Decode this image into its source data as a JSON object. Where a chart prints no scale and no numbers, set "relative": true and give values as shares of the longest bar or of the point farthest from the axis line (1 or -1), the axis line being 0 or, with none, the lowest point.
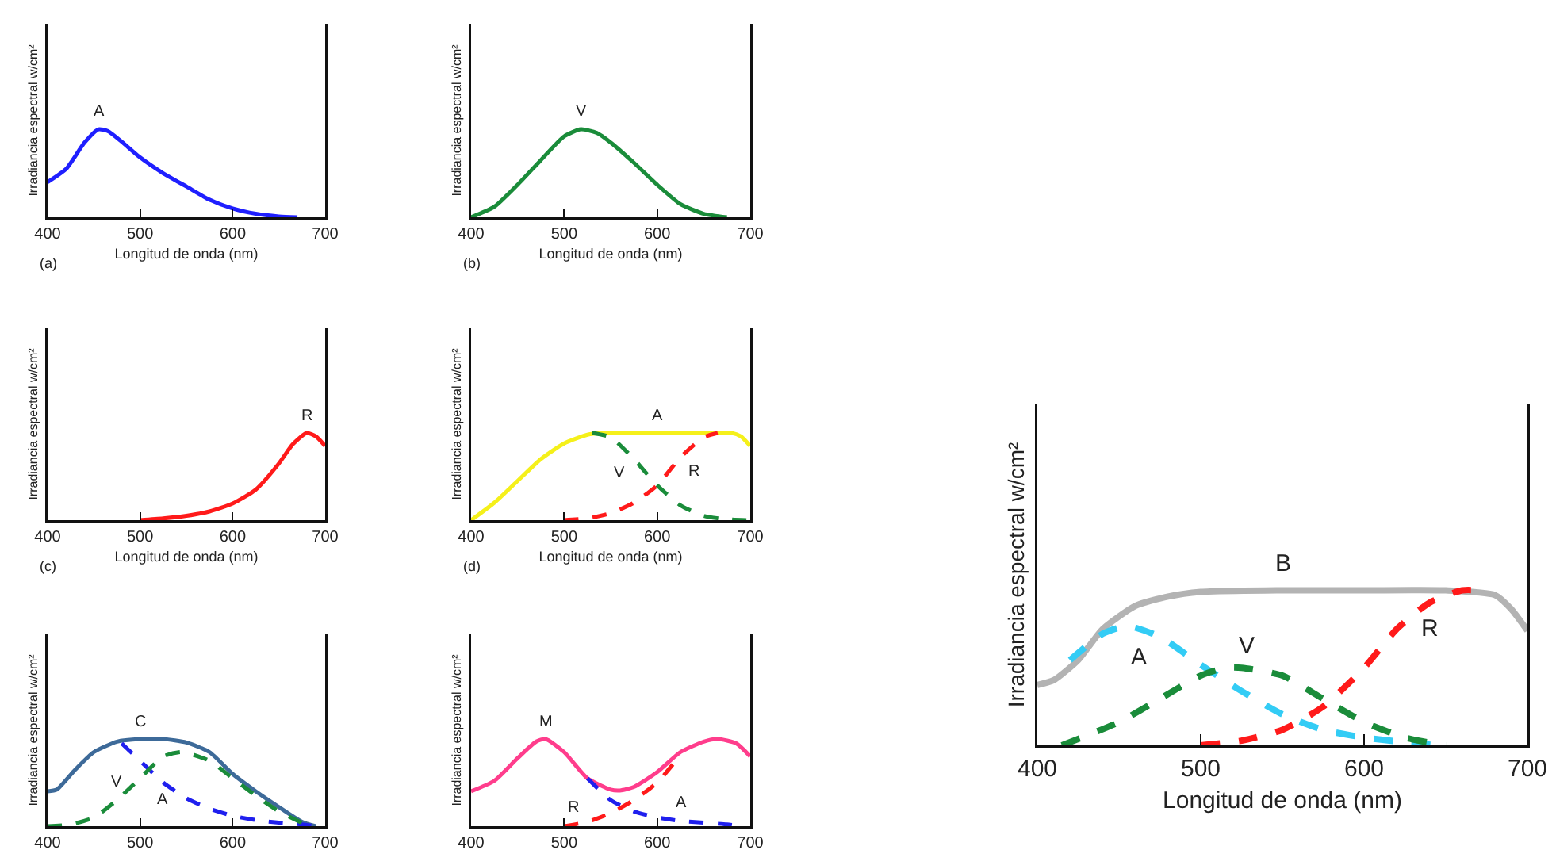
{
  "chart_data": [
    {
      "type": "line",
      "relative": true,
      "xlabel": "Longitud de onda (nm)",
      "ylabel": "Irradiancia espectral w/cm²",
      "xlim": [
        400,
        700
      ],
      "xticks": [
        400,
        500,
        600,
        700
      ],
      "annotations": [
        "(a)"
      ],
      "series": [
        {
          "name": "A",
          "color": "#1f1fff",
          "line_style": "solid",
          "x": [
            400,
            420,
            440,
            455,
            465,
            480,
            500,
            525,
            550,
            575,
            600,
            625,
            650,
            670
          ],
          "values": [
            0.4,
            0.55,
            0.85,
            1,
            0.98,
            0.86,
            0.68,
            0.5,
            0.35,
            0.2,
            0.1,
            0.04,
            0.01,
            0
          ]
        }
      ]
    },
    {
      "type": "line",
      "relative": true,
      "xlabel": "Longitud de onda (nm)",
      "ylabel": "Irradiancia espectral w/cm²",
      "xlim": [
        400,
        700
      ],
      "xticks": [
        400,
        500,
        600,
        700
      ],
      "annotations": [
        "(b)"
      ],
      "series": [
        {
          "name": "V",
          "color": "#1a8c3a",
          "line_style": "solid",
          "x": [
            400,
            425,
            450,
            475,
            500,
            518,
            535,
            550,
            575,
            600,
            625,
            650,
            675
          ],
          "values": [
            0,
            0.12,
            0.37,
            0.65,
            0.92,
            1,
            0.96,
            0.85,
            0.62,
            0.37,
            0.15,
            0.04,
            0
          ]
        }
      ]
    },
    {
      "type": "line",
      "relative": true,
      "xlabel": "Longitud de onda (nm)",
      "ylabel": "Irradiancia espectral w/cm²",
      "xlim": [
        400,
        700
      ],
      "xticks": [
        400,
        500,
        600,
        700
      ],
      "annotations": [
        "(c)"
      ],
      "series": [
        {
          "name": "R",
          "color": "#ff1a1a",
          "line_style": "solid",
          "x": [
            500,
            525,
            550,
            575,
            600,
            625,
            650,
            665,
            680,
            690,
            700
          ],
          "values": [
            0,
            0.02,
            0.05,
            0.1,
            0.19,
            0.35,
            0.65,
            0.87,
            1,
            0.96,
            0.85
          ]
        }
      ]
    },
    {
      "type": "line",
      "relative": true,
      "xlabel": "Longitud de onda (nm)",
      "ylabel": "Irradiancia espectral w/cm²",
      "xlim": [
        400,
        700
      ],
      "xticks": [
        400,
        500,
        600,
        700
      ],
      "annotations": [
        "(d)"
      ],
      "series": [
        {
          "name": "A",
          "color": "#f5f01a",
          "line_style": "solid",
          "x": [
            400,
            425,
            450,
            475,
            500,
            525,
            540,
            600,
            650,
            680,
            690,
            700
          ],
          "values": [
            0,
            0.2,
            0.45,
            0.7,
            0.88,
            0.98,
            1,
            1,
            1,
            1,
            0.96,
            0.85
          ]
        },
        {
          "name": "V",
          "color": "#1a8c3a",
          "line_style": "dashed",
          "x": [
            530,
            550,
            575,
            600,
            625,
            650,
            675,
            700
          ],
          "values": [
            1,
            0.95,
            0.7,
            0.4,
            0.17,
            0.05,
            0.01,
            0
          ]
        },
        {
          "name": "R",
          "color": "#ff1a1a",
          "line_style": "dashed",
          "x": [
            500,
            525,
            550,
            575,
            600,
            625,
            650,
            665
          ],
          "values": [
            0,
            0.02,
            0.08,
            0.2,
            0.4,
            0.72,
            0.95,
            1
          ]
        }
      ]
    },
    {
      "type": "line",
      "relative": true,
      "ylabel": "Irradiancia espectral w/cm²",
      "xlim": [
        400,
        700
      ],
      "xticks": [
        400,
        500,
        600,
        700
      ],
      "series": [
        {
          "name": "C",
          "color": "#3d6a99",
          "line_style": "solid",
          "x": [
            400,
            410,
            430,
            450,
            475,
            500,
            525,
            550,
            575,
            600,
            625,
            650,
            675,
            690
          ],
          "values": [
            0.4,
            0.42,
            0.65,
            0.85,
            0.97,
            1,
            1,
            0.96,
            0.85,
            0.6,
            0.4,
            0.22,
            0.05,
            0
          ]
        },
        {
          "name": "A",
          "color": "#1f1fee",
          "line_style": "dashed",
          "x": [
            480,
            500,
            525,
            550,
            575,
            600,
            625,
            650,
            675,
            690
          ],
          "values": [
            0.95,
            0.75,
            0.5,
            0.32,
            0.2,
            0.12,
            0.07,
            0.04,
            0.02,
            0
          ]
        },
        {
          "name": "V",
          "color": "#1a8c3a",
          "line_style": "dashed",
          "x": [
            400,
            425,
            450,
            475,
            500,
            525,
            545,
            575,
            600,
            625,
            650,
            675,
            690
          ],
          "values": [
            0,
            0.02,
            0.1,
            0.3,
            0.55,
            0.8,
            0.85,
            0.75,
            0.55,
            0.35,
            0.17,
            0.04,
            0
          ]
        }
      ]
    },
    {
      "type": "line",
      "relative": true,
      "ylabel": "Irradiancia espectral w/cm²",
      "xlim": [
        400,
        700
      ],
      "xticks": [
        400,
        500,
        600,
        700
      ],
      "series": [
        {
          "name": "M",
          "color": "#ff3d8c",
          "line_style": "solid",
          "x": [
            400,
            425,
            450,
            470,
            480,
            500,
            525,
            550,
            560,
            575,
            600,
            625,
            650,
            665,
            685,
            700
          ],
          "values": [
            0.4,
            0.52,
            0.78,
            0.97,
            1,
            0.85,
            0.55,
            0.42,
            0.41,
            0.45,
            0.62,
            0.85,
            0.97,
            1,
            0.95,
            0.8
          ]
        },
        {
          "name": "A",
          "color": "#1f1fee",
          "line_style": "dashed",
          "x": [
            525,
            550,
            575,
            600,
            625,
            650,
            675,
            690
          ],
          "values": [
            0.55,
            0.3,
            0.17,
            0.1,
            0.06,
            0.04,
            0.02,
            0
          ]
        },
        {
          "name": "R",
          "color": "#ff1a1a",
          "line_style": "dashed",
          "x": [
            500,
            525,
            550,
            575,
            600,
            620
          ],
          "values": [
            0,
            0.05,
            0.15,
            0.3,
            0.5,
            0.75
          ]
        }
      ]
    },
    {
      "type": "line",
      "relative": true,
      "xlabel": "Longitud de onda (nm)",
      "ylabel": "Irradiancia espectral w/cm²",
      "xlim": [
        400,
        700
      ],
      "xticks": [
        400,
        500,
        600,
        700
      ],
      "series": [
        {
          "name": "B",
          "color": "#b3b3b3",
          "line_style": "solid",
          "x": [
            400,
            410,
            425,
            440,
            460,
            480,
            500,
            550,
            600,
            650,
            680,
            690,
            700
          ],
          "values": [
            0.39,
            0.42,
            0.55,
            0.75,
            0.9,
            0.96,
            0.99,
            1,
            1,
            1,
            0.97,
            0.88,
            0.74
          ]
        },
        {
          "name": "A",
          "color": "#33ccf5",
          "line_style": "dashed",
          "x": [
            420,
            440,
            455,
            475,
            500,
            525,
            550,
            575,
            600,
            625,
            645
          ],
          "values": [
            0.55,
            0.72,
            0.77,
            0.7,
            0.52,
            0.35,
            0.2,
            0.1,
            0.05,
            0.02,
            0
          ]
        },
        {
          "name": "V",
          "color": "#1a8c3a",
          "line_style": "dashed",
          "x": [
            415,
            450,
            475,
            500,
            515,
            525,
            550,
            575,
            600,
            625,
            650
          ],
          "values": [
            0,
            0.15,
            0.3,
            0.45,
            0.5,
            0.5,
            0.45,
            0.3,
            0.15,
            0.05,
            0
          ]
        },
        {
          "name": "R",
          "color": "#ff1a1a",
          "line_style": "dashed",
          "x": [
            500,
            525,
            550,
            575,
            600,
            620,
            640,
            660,
            670
          ],
          "values": [
            0,
            0.03,
            0.1,
            0.25,
            0.5,
            0.75,
            0.92,
            1,
            1
          ]
        }
      ]
    }
  ]
}
